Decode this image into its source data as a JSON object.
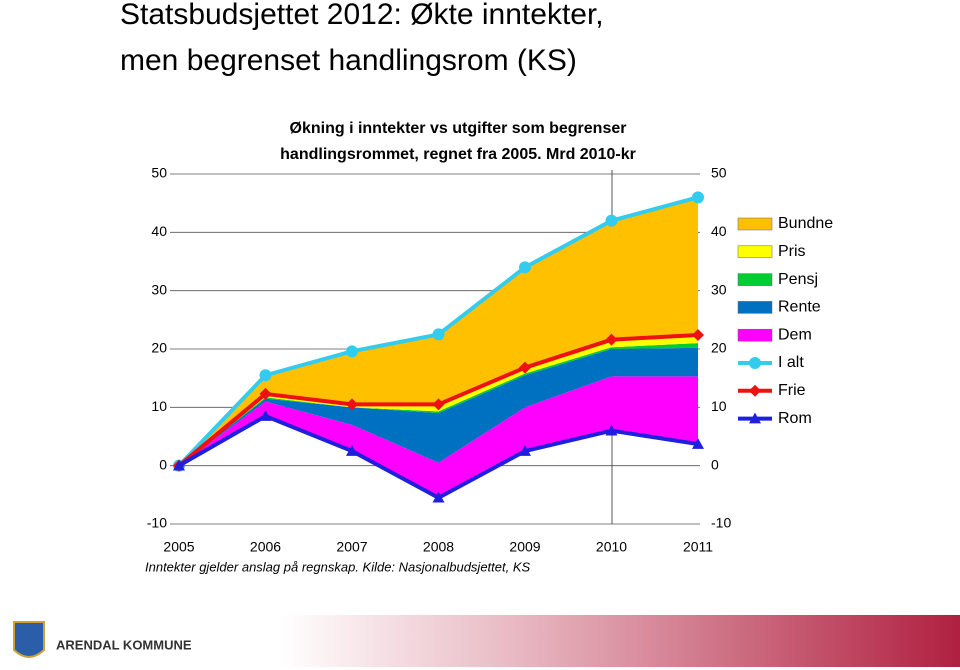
{
  "page_title": [
    "Statsbudsjettet 2012: Økte inntekter,",
    "men begrenset handlingsrom (KS)"
  ],
  "footer": "ARENDAL KOMMUNE",
  "chart_data": {
    "type": "area",
    "title": [
      "Økning i inntekter vs utgifter som begrenser",
      "handlingsrommet, regnet fra 2005. Mrd 2010-kr"
    ],
    "source": "Inntekter gjelder anslag på regnskap. Kilde: Nasjonalbudsjettet, KS",
    "categories": [
      "2005",
      "2006",
      "2007",
      "2008",
      "2009",
      "2010",
      "2011"
    ],
    "ylim": [
      -10,
      50
    ],
    "yticks": [
      -10,
      0,
      10,
      20,
      30,
      40,
      50
    ],
    "y2lim": [
      -10,
      50
    ],
    "y2ticks": [
      -10,
      0,
      10,
      20,
      30,
      40,
      50
    ],
    "grid": true,
    "series": [
      {
        "name": "Bundne",
        "kind": "area",
        "color": "#ffc000",
        "values": [
          0,
          3.5,
          9.3,
          12.2,
          17.5,
          20.5,
          23.7
        ]
      },
      {
        "name": "Pris",
        "kind": "area",
        "color": "#ffff00",
        "values": [
          0,
          0.3,
          0.3,
          1,
          0.7,
          1.2,
          1.3
        ]
      },
      {
        "name": "Pensj",
        "kind": "area",
        "color": "#00cc33",
        "values": [
          0,
          0.2,
          0,
          0.3,
          0.3,
          0.3,
          0.8
        ]
      },
      {
        "name": "Rente",
        "kind": "area",
        "color": "#0070c0",
        "values": [
          0,
          0.5,
          3,
          8.5,
          5.5,
          4.7,
          4.9
        ]
      },
      {
        "name": "Dem",
        "kind": "area",
        "color": "#ff00ff",
        "values": [
          0,
          2.5,
          4.5,
          6,
          7.5,
          9.3,
          11.6
        ]
      },
      {
        "name": "I alt",
        "kind": "line",
        "marker": "circle",
        "color": "#33ccee",
        "values": [
          0,
          15.5,
          19.6,
          22.5,
          34,
          42,
          46
        ]
      },
      {
        "name": "Frie",
        "kind": "line",
        "marker": "diamond",
        "color": "#ee1111",
        "values": [
          0,
          12.3,
          10.5,
          10.5,
          16.8,
          21.6,
          22.4
        ]
      },
      {
        "name": "Rom",
        "kind": "line",
        "marker": "triangle",
        "color": "#1f1fe0",
        "values": [
          0,
          8.5,
          2.5,
          -5.5,
          2.5,
          6,
          3.7
        ]
      }
    ]
  }
}
